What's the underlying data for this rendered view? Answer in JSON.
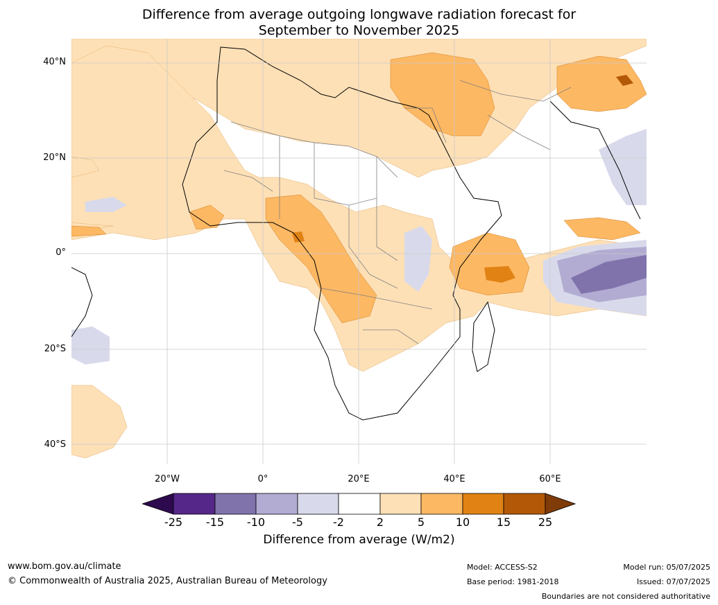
{
  "title": {
    "line1": "Difference from average outgoing longwave radiation forecast for",
    "line2": "September to November 2025"
  },
  "map": {
    "y_ticks": [
      {
        "label": "40°N",
        "lat": 40
      },
      {
        "label": "20°N",
        "lat": 20
      },
      {
        "label": "0°",
        "lat": 0
      },
      {
        "label": "20°S",
        "lat": -20
      },
      {
        "label": "40°S",
        "lat": -40
      }
    ],
    "x_ticks": [
      {
        "label": "20°W",
        "lon": -20
      },
      {
        "label": "0°",
        "lon": 0
      },
      {
        "label": "20°E",
        "lon": 20
      },
      {
        "label": "40°E",
        "lon": 40
      },
      {
        "label": "60°E",
        "lon": 60
      }
    ],
    "extent": {
      "lon_min": -40,
      "lon_max": 80,
      "lat_min": -44,
      "lat_max": 45
    }
  },
  "colorbar": {
    "ticks": [
      "-25",
      "-15",
      "-10",
      "-5",
      "-2",
      "2",
      "5",
      "10",
      "15",
      "25"
    ],
    "colors": [
      "#2d0a4e",
      "#542789",
      "#8073ac",
      "#b2abd2",
      "#d8daeb",
      "#ffffff",
      "#fee0b6",
      "#fdb863",
      "#e08214",
      "#b35806",
      "#7f3b08"
    ],
    "label": "Difference from average (W/m2)"
  },
  "footer": {
    "url": "www.bom.gov.au/climate",
    "copyright": "© Commonwealth of Australia 2025, Australian Bureau of Meteorology",
    "model": "Model: ACCESS-S2",
    "base_period": "Base period: 1981-2018",
    "model_run": "Model run: 05/07/2025",
    "issued": "Issued: 07/07/2025",
    "disclaimer": "Boundaries are not considered authoritative"
  }
}
